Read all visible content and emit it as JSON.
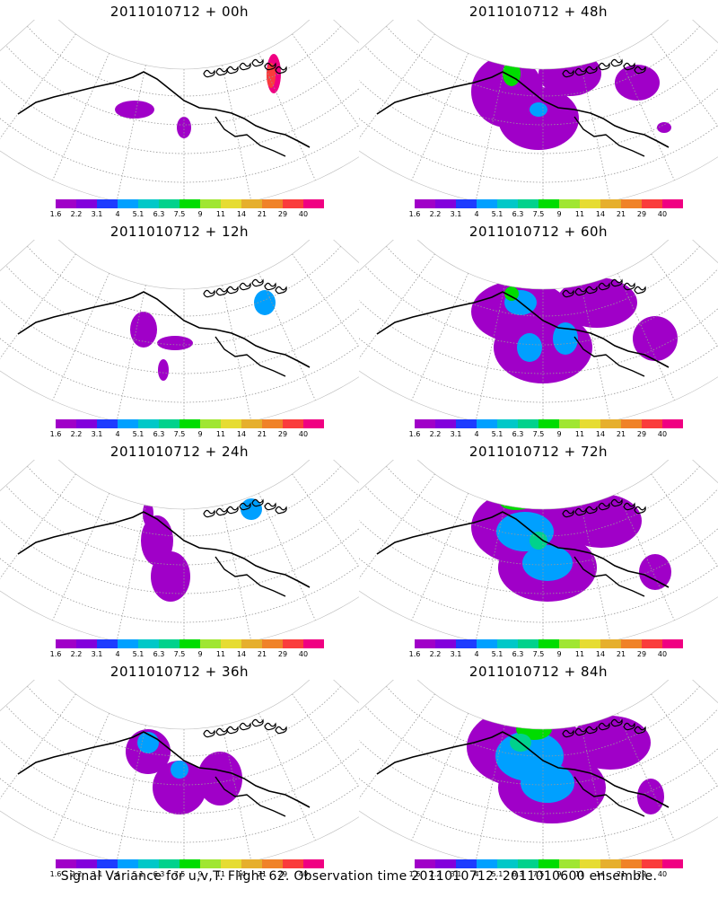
{
  "footer_text": "Signal Variance for u,v,T. Flight 62. Observation time 2011010712. 2011010600 ensemble.",
  "colorbar": {
    "labels": [
      "1.6",
      "2.2",
      "3.1",
      "4",
      "5.1",
      "6.3",
      "7.5",
      "9",
      "11",
      "14",
      "21",
      "29",
      "40"
    ],
    "colors": [
      "#a000c8",
      "#8200dc",
      "#1e3cff",
      "#00a0ff",
      "#00c8c8",
      "#00d28c",
      "#00dc00",
      "#a0e632",
      "#e6dc32",
      "#e6af2d",
      "#f08228",
      "#fa3c3c",
      "#f00082"
    ]
  },
  "panels": [
    {
      "title": "2011010712 + 00h",
      "lead_hours": 0
    },
    {
      "title": "2011010712 + 48h",
      "lead_hours": 48
    },
    {
      "title": "2011010712 + 12h",
      "lead_hours": 12
    },
    {
      "title": "2011010712 + 60h",
      "lead_hours": 60
    },
    {
      "title": "2011010712 + 24h",
      "lead_hours": 24
    },
    {
      "title": "2011010712 + 72h",
      "lead_hours": 72
    },
    {
      "title": "2011010712 + 36h",
      "lead_hours": 36
    },
    {
      "title": "2011010712 + 84h",
      "lead_hours": 84
    }
  ]
}
